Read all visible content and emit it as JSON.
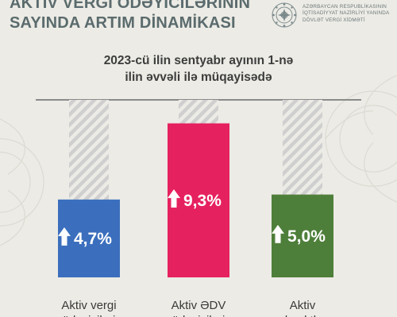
{
  "header": {
    "title_line1": "AKTİV VERGİ ÖDƏYİCİLƏRİNİN",
    "title_line2": "SAYINDA ARTIM DİNAMİKASI"
  },
  "organization": {
    "line1": "AZƏRBAYCAN RESPUBLİKASININ",
    "line2": "İQTİSADİYYAT NAZİRLİYİ YANINDA",
    "line3": "DÖVLƏT VERGİ XİDMƏTİ"
  },
  "subtitle": {
    "line1": "2023-cü ilin sentyabr ayının 1-nə",
    "line2": "ilin əvvəli ilə müqayisədə"
  },
  "colors": {
    "background": "#ecebe5",
    "title": "#5b6b6d",
    "bar_blue": "#3b6fbd",
    "bar_pink": "#e6215f",
    "bar_green": "#4e7f3a",
    "hatch": "#cfcfcf"
  },
  "chart_data": {
    "type": "bar",
    "categories_lines": [
      [
        "Aktiv vergi",
        "ödəyiciləri"
      ],
      [
        "Aktiv ƏDV",
        "ödəyiciləri"
      ],
      [
        "Aktiv",
        "obyektlər"
      ]
    ],
    "values": [
      4.7,
      9.3,
      5.0
    ],
    "value_labels": [
      "4,7%",
      "9,3%",
      "5,0%"
    ],
    "bar_colors": [
      "#3b6fbd",
      "#e6215f",
      "#4e7f3a"
    ],
    "ylim": [
      0,
      10
    ],
    "background_columns": "hatched",
    "value_icon": "up-arrow-icon"
  }
}
